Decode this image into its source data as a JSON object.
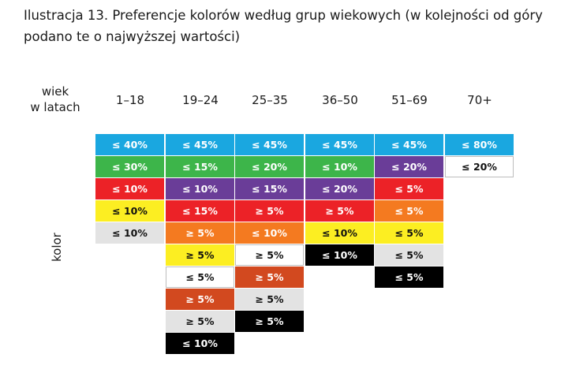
{
  "title_line1": "Ilustracja 13. Preferencje kolorów według grup wiekowych (w kolejności od góry",
  "title_line2": "podano te o najwyższej wartości)",
  "age_axis_label_line1": "wiek",
  "age_axis_label_line2": "w latach",
  "color_axis_label": "kolor",
  "colors": {
    "blue": "#1aa7e0",
    "green": "#3db54a",
    "red": "#ec2227",
    "yellow": "#fcee22",
    "light_gray": "#e3e3e3",
    "purple": "#6a3d98",
    "orange": "#f47a20",
    "white": "#ffffff",
    "brown": "#d2491f",
    "black": "#000000"
  },
  "chart_data": {
    "type": "table",
    "title": "Ilustracja 13. Preferencje kolorów według grup wiekowych (w kolejności od góry podano te o najwyższej wartości)",
    "xlabel": "wiek w latach",
    "ylabel": "kolor",
    "categories": [
      "1–18",
      "19–24",
      "25–35",
      "36–50",
      "51–69",
      "70+"
    ],
    "columns": [
      {
        "age": "1–18",
        "cells": [
          {
            "color": "blue",
            "label": "≤ 40%"
          },
          {
            "color": "green",
            "label": "≤ 30%"
          },
          {
            "color": "red",
            "label": "≤ 10%"
          },
          {
            "color": "yellow",
            "label": "≤ 10%"
          },
          {
            "color": "light_gray",
            "label": "≤ 10%"
          }
        ]
      },
      {
        "age": "19–24",
        "cells": [
          {
            "color": "blue",
            "label": "≤ 45%"
          },
          {
            "color": "green",
            "label": "≤ 15%"
          },
          {
            "color": "purple",
            "label": "≤ 10%"
          },
          {
            "color": "red",
            "label": "≤ 15%"
          },
          {
            "color": "orange",
            "label": "≥ 5%"
          },
          {
            "color": "yellow",
            "label": "≥ 5%"
          },
          {
            "color": "white",
            "label": "≤ 5%"
          },
          {
            "color": "brown",
            "label": "≥ 5%"
          },
          {
            "color": "light_gray",
            "label": "≥ 5%"
          },
          {
            "color": "black",
            "label": "≤ 10%"
          }
        ]
      },
      {
        "age": "25–35",
        "cells": [
          {
            "color": "blue",
            "label": "≤ 45%"
          },
          {
            "color": "green",
            "label": "≤ 20%"
          },
          {
            "color": "purple",
            "label": "≤ 15%"
          },
          {
            "color": "red",
            "label": "≥ 5%"
          },
          {
            "color": "orange",
            "label": "≤ 10%"
          },
          {
            "color": "white",
            "label": "≥ 5%"
          },
          {
            "color": "brown",
            "label": "≥ 5%"
          },
          {
            "color": "light_gray",
            "label": "≥ 5%"
          },
          {
            "color": "black",
            "label": "≥ 5%"
          }
        ]
      },
      {
        "age": "36–50",
        "cells": [
          {
            "color": "blue",
            "label": "≤ 45%"
          },
          {
            "color": "green",
            "label": "≤ 10%"
          },
          {
            "color": "purple",
            "label": "≤ 20%"
          },
          {
            "color": "red",
            "label": "≥ 5%"
          },
          {
            "color": "yellow",
            "label": "≤ 10%"
          },
          {
            "color": "black",
            "label": "≤ 10%"
          }
        ]
      },
      {
        "age": "51–69",
        "cells": [
          {
            "color": "blue",
            "label": "≤ 45%"
          },
          {
            "color": "purple",
            "label": "≤ 20%"
          },
          {
            "color": "red",
            "label": "≤ 5%"
          },
          {
            "color": "orange",
            "label": "≤ 5%"
          },
          {
            "color": "yellow",
            "label": "≤ 5%"
          },
          {
            "color": "light_gray",
            "label": "≤ 5%"
          },
          {
            "color": "black",
            "label": "≤ 5%"
          }
        ]
      },
      {
        "age": "70+",
        "cells": [
          {
            "color": "blue",
            "label": "≤ 80%"
          },
          {
            "color": "white",
            "label": "≤ 20%"
          }
        ]
      }
    ]
  }
}
